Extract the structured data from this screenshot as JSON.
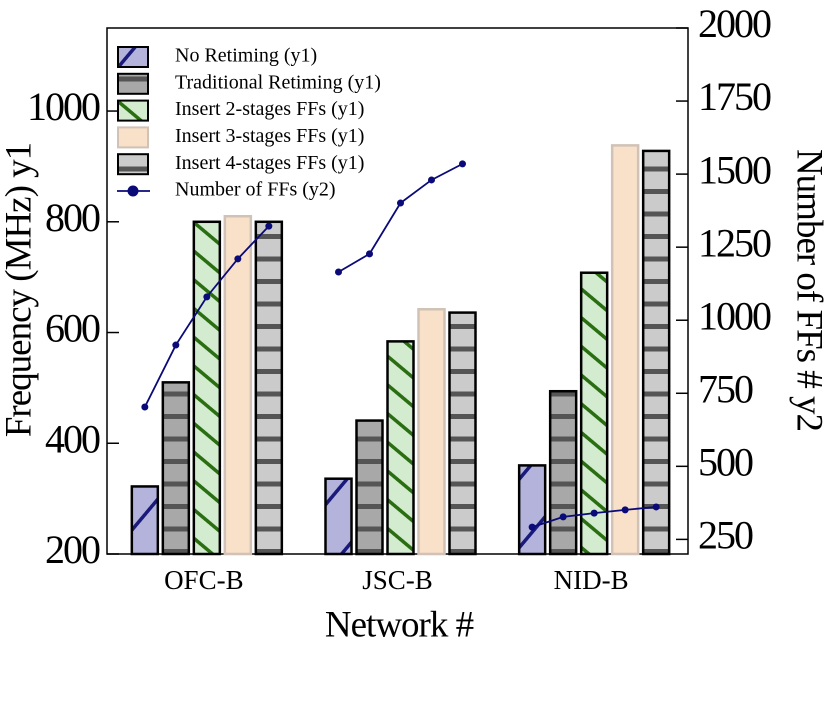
{
  "chart_data": {
    "type": "bar",
    "x_label": "Network #",
    "y_label": "Frequency (MHz) y1",
    "y2_label": "Number of FFs # y2",
    "categories": [
      "OFC-B",
      "JSC-B",
      "NID-B"
    ],
    "ylim": [
      200,
      1150
    ],
    "yticks": [
      200,
      400,
      600,
      800,
      1000
    ],
    "y2lim": [
      200,
      2000
    ],
    "y2ticks": [
      250,
      500,
      750,
      1000,
      1250,
      1500,
      1750,
      2000
    ],
    "series": [
      {
        "name": "No Retiming (y1)",
        "color": "#b3b3dc",
        "hatch": "diagonal-up",
        "hatch_color": "#1a1a7a",
        "edge": "#000000",
        "values": [
          322,
          336,
          360
        ]
      },
      {
        "name": "Traditional Retiming (y1)",
        "color": "#a8a8a8",
        "hatch": "horizontal",
        "hatch_color": "#555555",
        "edge": "#000000",
        "values": [
          510,
          441,
          494
        ]
      },
      {
        "name": "Insert 2-stages FFs (y1)",
        "color": "#d3ebcf",
        "hatch": "diagonal-down",
        "hatch_color": "#2a6e12",
        "edge": "#000000",
        "values": [
          800,
          584,
          708
        ]
      },
      {
        "name": "Insert 3-stages FFs (y1)",
        "color": "#f8e0c9",
        "hatch": "none",
        "hatch_color": "#f8e0c9",
        "edge": "#d0c2b6",
        "values": [
          810,
          642,
          938
        ]
      },
      {
        "name": "Insert 4-stages FFs (y1)",
        "color": "#cbcbcb",
        "hatch": "horizontal",
        "hatch_color": "#555555",
        "edge": "#000000",
        "values": [
          800,
          636,
          928
        ]
      }
    ],
    "line_series": {
      "name": "Number of FFs (y2)",
      "color": "#0a0a78",
      "axis": "y2",
      "values": [
        [
          703,
          915,
          1080,
          1210,
          1322
        ],
        [
          1165,
          1227,
          1401,
          1480,
          1535
        ],
        [
          292,
          327,
          340,
          351,
          361
        ]
      ]
    }
  }
}
